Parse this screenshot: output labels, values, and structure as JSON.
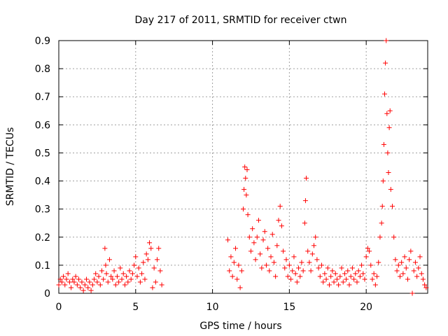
{
  "chart_data": {
    "type": "scatter",
    "title": "Day 217 of 2011, SRMTID for receiver ctwn",
    "xlabel": "GPS time / hours",
    "ylabel": "SRMTID / TECUs",
    "xlim": [
      0,
      24
    ],
    "ylim": [
      0,
      0.9
    ],
    "x_ticks": [
      {
        "value": 0,
        "label": "0"
      },
      {
        "value": 5,
        "label": "5"
      },
      {
        "value": 10,
        "label": "10"
      },
      {
        "value": 15,
        "label": "15"
      },
      {
        "value": 20,
        "label": "20"
      }
    ],
    "y_ticks": [
      {
        "value": 0,
        "label": "0"
      },
      {
        "value": 0.1,
        "label": "0.1"
      },
      {
        "value": 0.2,
        "label": "0.2"
      },
      {
        "value": 0.3,
        "label": "0.3"
      },
      {
        "value": 0.4,
        "label": "0.4"
      },
      {
        "value": 0.5,
        "label": "0.5"
      },
      {
        "value": 0.6,
        "label": "0.6"
      },
      {
        "value": 0.7,
        "label": "0.7"
      },
      {
        "value": 0.8,
        "label": "0.8"
      },
      {
        "value": 0.9,
        "label": "0.9"
      }
    ],
    "grid": true,
    "marker": "+",
    "series": [
      {
        "name": "SRMTID",
        "color": "#ff0000",
        "points": [
          [
            0.0,
            0.03
          ],
          [
            0.1,
            0.05
          ],
          [
            0.2,
            0.04
          ],
          [
            0.3,
            0.06
          ],
          [
            0.4,
            0.03
          ],
          [
            0.5,
            0.05
          ],
          [
            0.6,
            0.07
          ],
          [
            0.7,
            0.04
          ],
          [
            0.8,
            0.02
          ],
          [
            0.9,
            0.05
          ],
          [
            1.0,
            0.04
          ],
          [
            1.1,
            0.06
          ],
          [
            1.2,
            0.03
          ],
          [
            1.3,
            0.05
          ],
          [
            1.4,
            0.02
          ],
          [
            1.5,
            0.04
          ],
          [
            1.6,
            0.01
          ],
          [
            1.7,
            0.03
          ],
          [
            1.8,
            0.05
          ],
          [
            1.9,
            0.02
          ],
          [
            2.0,
            0.04
          ],
          [
            2.1,
            0.01
          ],
          [
            2.2,
            0.03
          ],
          [
            2.3,
            0.05
          ],
          [
            2.4,
            0.07
          ],
          [
            2.5,
            0.04
          ],
          [
            2.6,
            0.06
          ],
          [
            2.7,
            0.03
          ],
          [
            2.8,
            0.08
          ],
          [
            2.9,
            0.05
          ],
          [
            3.0,
            0.16
          ],
          [
            3.05,
            0.1
          ],
          [
            3.1,
            0.07
          ],
          [
            3.2,
            0.04
          ],
          [
            3.3,
            0.12
          ],
          [
            3.4,
            0.06
          ],
          [
            3.5,
            0.05
          ],
          [
            3.6,
            0.08
          ],
          [
            3.7,
            0.03
          ],
          [
            3.8,
            0.06
          ],
          [
            3.9,
            0.04
          ],
          [
            4.0,
            0.09
          ],
          [
            4.1,
            0.05
          ],
          [
            4.2,
            0.07
          ],
          [
            4.3,
            0.03
          ],
          [
            4.4,
            0.06
          ],
          [
            4.5,
            0.04
          ],
          [
            4.6,
            0.08
          ],
          [
            4.7,
            0.05
          ],
          [
            4.8,
            0.07
          ],
          [
            4.9,
            0.1
          ],
          [
            5.0,
            0.13
          ],
          [
            5.1,
            0.06
          ],
          [
            5.2,
            0.09
          ],
          [
            5.3,
            0.04
          ],
          [
            5.4,
            0.07
          ],
          [
            5.5,
            0.11
          ],
          [
            5.6,
            0.05
          ],
          [
            5.7,
            0.14
          ],
          [
            5.8,
            0.12
          ],
          [
            5.9,
            0.18
          ],
          [
            6.0,
            0.16
          ],
          [
            6.1,
            0.02
          ],
          [
            6.2,
            0.09
          ],
          [
            6.3,
            0.04
          ],
          [
            6.4,
            0.12
          ],
          [
            6.5,
            0.16
          ],
          [
            6.6,
            0.08
          ],
          [
            6.7,
            0.03
          ],
          [
            11.0,
            0.19
          ],
          [
            11.1,
            0.08
          ],
          [
            11.2,
            0.13
          ],
          [
            11.3,
            0.06
          ],
          [
            11.4,
            0.11
          ],
          [
            11.5,
            0.16
          ],
          [
            11.6,
            0.05
          ],
          [
            11.7,
            0.1
          ],
          [
            11.8,
            0.02
          ],
          [
            11.9,
            0.08
          ],
          [
            12.0,
            0.3
          ],
          [
            12.05,
            0.37
          ],
          [
            12.1,
            0.45
          ],
          [
            12.15,
            0.41
          ],
          [
            12.2,
            0.35
          ],
          [
            12.25,
            0.44
          ],
          [
            12.3,
            0.28
          ],
          [
            12.4,
            0.2
          ],
          [
            12.5,
            0.15
          ],
          [
            12.6,
            0.23
          ],
          [
            12.7,
            0.18
          ],
          [
            12.8,
            0.12
          ],
          [
            12.9,
            0.2
          ],
          [
            13.0,
            0.26
          ],
          [
            13.1,
            0.14
          ],
          [
            13.2,
            0.09
          ],
          [
            13.3,
            0.19
          ],
          [
            13.4,
            0.22
          ],
          [
            13.5,
            0.1
          ],
          [
            13.6,
            0.16
          ],
          [
            13.7,
            0.08
          ],
          [
            13.8,
            0.13
          ],
          [
            13.9,
            0.21
          ],
          [
            14.0,
            0.11
          ],
          [
            14.1,
            0.06
          ],
          [
            14.2,
            0.17
          ],
          [
            14.3,
            0.26
          ],
          [
            14.4,
            0.31
          ],
          [
            14.5,
            0.24
          ],
          [
            14.6,
            0.15
          ],
          [
            14.7,
            0.09
          ],
          [
            14.8,
            0.12
          ],
          [
            14.9,
            0.06
          ],
          [
            15.0,
            0.1
          ],
          [
            15.1,
            0.05
          ],
          [
            15.2,
            0.08
          ],
          [
            15.3,
            0.13
          ],
          [
            15.4,
            0.07
          ],
          [
            15.5,
            0.04
          ],
          [
            15.6,
            0.09
          ],
          [
            15.7,
            0.06
          ],
          [
            15.8,
            0.11
          ],
          [
            15.9,
            0.08
          ],
          [
            16.0,
            0.25
          ],
          [
            16.05,
            0.33
          ],
          [
            16.1,
            0.41
          ],
          [
            16.2,
            0.15
          ],
          [
            16.3,
            0.11
          ],
          [
            16.4,
            0.08
          ],
          [
            16.5,
            0.14
          ],
          [
            16.6,
            0.17
          ],
          [
            16.7,
            0.2
          ],
          [
            16.8,
            0.12
          ],
          [
            16.9,
            0.09
          ],
          [
            17.0,
            0.06
          ],
          [
            17.1,
            0.1
          ],
          [
            17.2,
            0.04
          ],
          [
            17.3,
            0.07
          ],
          [
            17.4,
            0.05
          ],
          [
            17.5,
            0.09
          ],
          [
            17.6,
            0.03
          ],
          [
            17.7,
            0.06
          ],
          [
            17.8,
            0.08
          ],
          [
            17.9,
            0.04
          ],
          [
            18.0,
            0.07
          ],
          [
            18.1,
            0.05
          ],
          [
            18.2,
            0.03
          ],
          [
            18.3,
            0.06
          ],
          [
            18.4,
            0.09
          ],
          [
            18.5,
            0.04
          ],
          [
            18.6,
            0.07
          ],
          [
            18.7,
            0.05
          ],
          [
            18.8,
            0.08
          ],
          [
            18.9,
            0.03
          ],
          [
            19.0,
            0.06
          ],
          [
            19.1,
            0.09
          ],
          [
            19.2,
            0.05
          ],
          [
            19.3,
            0.07
          ],
          [
            19.4,
            0.04
          ],
          [
            19.5,
            0.08
          ],
          [
            19.6,
            0.06
          ],
          [
            19.7,
            0.1
          ],
          [
            19.8,
            0.07
          ],
          [
            19.9,
            0.05
          ],
          [
            20.0,
            0.13
          ],
          [
            20.1,
            0.16
          ],
          [
            20.2,
            0.15
          ],
          [
            20.3,
            0.1
          ],
          [
            20.4,
            0.05
          ],
          [
            20.5,
            0.07
          ],
          [
            20.6,
            0.03
          ],
          [
            20.7,
            0.06
          ],
          [
            20.8,
            0.11
          ],
          [
            20.9,
            0.2
          ],
          [
            21.0,
            0.25
          ],
          [
            21.05,
            0.31
          ],
          [
            21.1,
            0.4
          ],
          [
            21.15,
            0.53
          ],
          [
            21.2,
            0.71
          ],
          [
            21.25,
            0.82
          ],
          [
            21.3,
            0.9
          ],
          [
            21.35,
            0.64
          ],
          [
            21.4,
            0.5
          ],
          [
            21.45,
            0.43
          ],
          [
            21.5,
            0.59
          ],
          [
            21.55,
            0.65
          ],
          [
            21.6,
            0.37
          ],
          [
            21.7,
            0.31
          ],
          [
            21.8,
            0.2
          ],
          [
            21.9,
            0.12
          ],
          [
            22.0,
            0.08
          ],
          [
            22.1,
            0.1
          ],
          [
            22.2,
            0.06
          ],
          [
            22.3,
            0.11
          ],
          [
            22.4,
            0.07
          ],
          [
            22.5,
            0.13
          ],
          [
            22.6,
            0.09
          ],
          [
            22.7,
            0.05
          ],
          [
            22.8,
            0.12
          ],
          [
            22.9,
            0.15
          ],
          [
            23.0,
            0.0
          ],
          [
            23.1,
            0.08
          ],
          [
            23.2,
            0.11
          ],
          [
            23.3,
            0.06
          ],
          [
            23.4,
            0.09
          ],
          [
            23.5,
            0.13
          ],
          [
            23.6,
            0.07
          ],
          [
            23.7,
            0.05
          ],
          [
            23.8,
            0.03
          ],
          [
            23.9,
            0.02
          ]
        ]
      }
    ]
  }
}
